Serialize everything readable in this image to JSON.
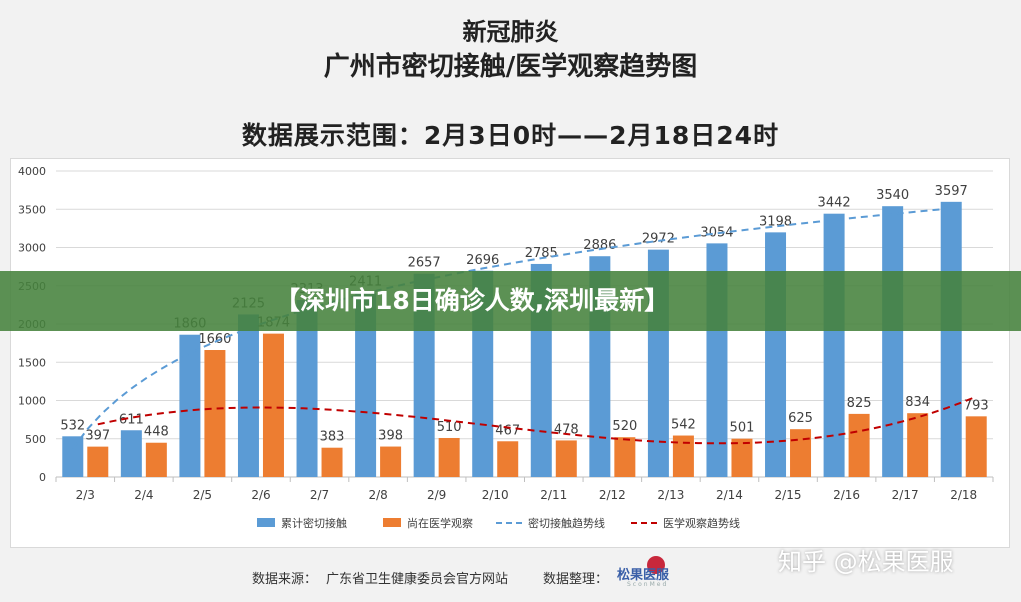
{
  "header": {
    "title_line1": "新冠肺炎",
    "title_line2": "广州市密切接触/医学观察趋势图",
    "date_range": "数据展示范围：2月3日0时——2月18日24时"
  },
  "banner": {
    "text": "【深圳市18日确诊人数,深圳最新】"
  },
  "footer": {
    "source_label": "数据来源：",
    "source_value": "广东省卫生健康委员会官方网站",
    "organizer_label": "数据整理：",
    "logo_text": "松果医服",
    "logo_sub": "SconMed"
  },
  "watermark": "知乎 @松果医服",
  "colors": {
    "blue": "#5b9bd5",
    "orange": "#ed7d31",
    "trend_blue": "#5b9bd5",
    "trend_red": "#c00000",
    "grid": "#d9d9d9"
  },
  "chart_data": {
    "type": "bar",
    "categories": [
      "2/3",
      "2/4",
      "2/5",
      "2/6",
      "2/7",
      "2/8",
      "2/9",
      "2/10",
      "2/11",
      "2/12",
      "2/13",
      "2/14",
      "2/15",
      "2/16",
      "2/17",
      "2/18"
    ],
    "series": [
      {
        "name": "累计密切接触",
        "values": [
          532,
          611,
          1860,
          2125,
          2313,
          2411,
          2657,
          2696,
          2785,
          2886,
          2972,
          3054,
          3198,
          3442,
          3540,
          3597
        ]
      },
      {
        "name": "尚在医学观察",
        "values": [
          397,
          448,
          1660,
          1874,
          383,
          398,
          510,
          467,
          478,
          520,
          542,
          501,
          625,
          825,
          834,
          793
        ]
      }
    ],
    "trendlines": [
      {
        "name": "密切接触趋势线"
      },
      {
        "name": "医学观察趋势线"
      }
    ],
    "ylim": [
      0,
      4000
    ],
    "yticks": [
      0,
      500,
      1000,
      1500,
      2000,
      2500,
      3000,
      3500,
      4000
    ],
    "grid": true,
    "legend": "bottom"
  }
}
